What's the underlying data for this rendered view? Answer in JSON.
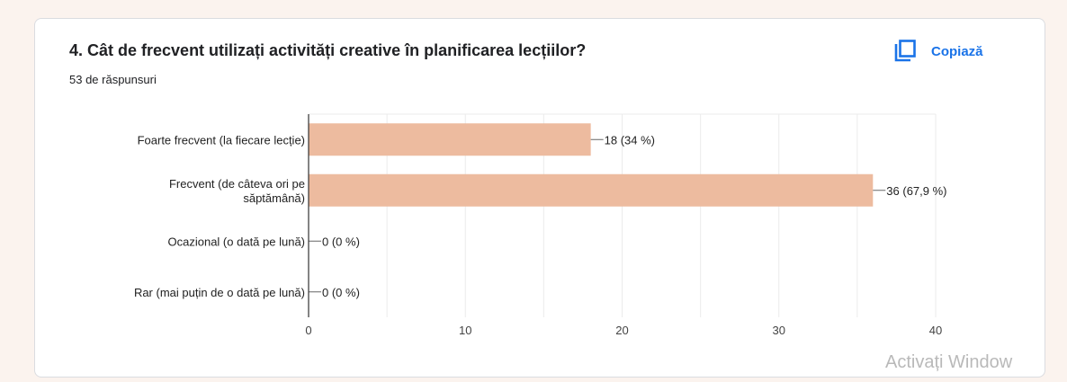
{
  "question": {
    "title": "4. Cât de frecvent utilizați activități creative în planificarea lecțiilor?",
    "responses": "53 de răspunsuri",
    "copy_label": "Copiază"
  },
  "watermark": "Activați Window",
  "colors": {
    "bar": "#edbb9f",
    "accent": "#1a73e8",
    "grid": "#ebebeb"
  },
  "chart_data": {
    "type": "bar",
    "orientation": "horizontal",
    "categories": [
      [
        "Foarte frecvent (la fiecare lecție)"
      ],
      [
        "Frecvent (de câteva ori pe",
        "săptămână)"
      ],
      [
        "Ocazional (o dată pe lună)"
      ],
      [
        "Rar (mai puțin de o dată pe lună)"
      ]
    ],
    "values": [
      18,
      36,
      0,
      0
    ],
    "data_labels": [
      "18 (34 %)",
      "36 (67,9 %)",
      "0 (0 %)",
      "0 (0 %)"
    ],
    "xlim": [
      0,
      40
    ],
    "xticks": [
      0,
      10,
      20,
      30,
      40
    ],
    "grid": true
  }
}
